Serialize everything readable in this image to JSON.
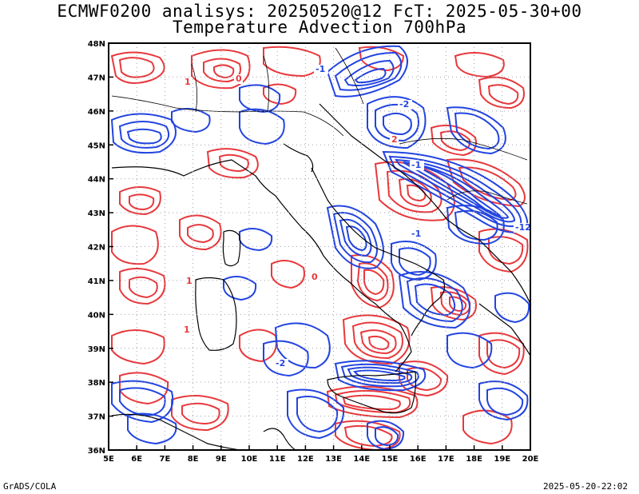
{
  "title": {
    "line1": "ECMWF0200 analisys: 20250520@12 FcT: 2025-05-30+00",
    "line2": "Temperature Advection 700hPa"
  },
  "map": {
    "lon_labels": [
      "5E",
      "6E",
      "7E",
      "8E",
      "9E",
      "10E",
      "11E",
      "12E",
      "13E",
      "14E",
      "15E",
      "16E",
      "17E",
      "18E",
      "19E",
      "20E"
    ],
    "lat_labels": [
      "48N",
      "47N",
      "46N",
      "45N",
      "44N",
      "43N",
      "42N",
      "41N",
      "40N",
      "39N",
      "38N",
      "37N",
      "36N"
    ],
    "colors": {
      "warm_advection": "#e8383c",
      "cold_advection": "#2244e0",
      "coastline": "#000000",
      "grid": "#a0a0b0"
    },
    "contour_labels": [
      {
        "text": "1",
        "color": "warm"
      },
      {
        "text": "0",
        "color": "warm"
      },
      {
        "text": "-1",
        "color": "cold"
      },
      {
        "text": "-2",
        "color": "cold"
      },
      {
        "text": "2",
        "color": "warm"
      },
      {
        "text": "-1",
        "color": "cold"
      },
      {
        "text": "1",
        "color": "warm"
      },
      {
        "text": "-2",
        "color": "cold"
      },
      {
        "text": "0",
        "color": "warm"
      },
      {
        "text": "-1",
        "color": "cold"
      },
      {
        "text": "-12",
        "color": "cold"
      },
      {
        "text": "1",
        "color": "warm"
      }
    ]
  },
  "footer": {
    "left": "GrADS/COLA",
    "right": "2025-05-20-22:02"
  }
}
